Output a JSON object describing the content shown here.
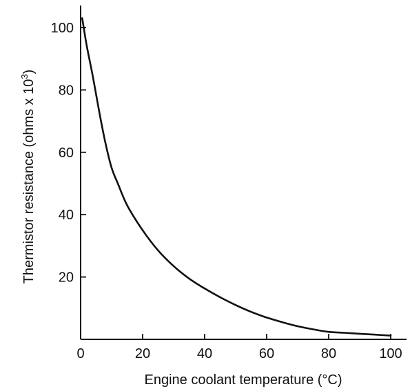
{
  "chart_data": {
    "type": "line",
    "xlabel": "Engine coolant temperature (°C)",
    "ylabel": "Thermistor resistance (ohms x 10",
    "ylabel_sup": "3",
    "ylabel_close": ")",
    "xlim": [
      0,
      105
    ],
    "ylim": [
      0,
      105
    ],
    "x_ticks": [
      0,
      20,
      40,
      60,
      80,
      100
    ],
    "y_ticks": [
      20,
      40,
      60,
      80,
      100
    ],
    "grid": false,
    "series": [
      {
        "x": [
          0.5,
          1,
          2,
          4,
          6,
          8,
          10,
          12,
          15,
          20,
          25,
          30,
          35,
          40,
          45,
          50,
          55,
          60,
          65,
          70,
          75,
          80,
          85,
          90,
          95,
          100
        ],
        "y": [
          103,
          100,
          94,
          84,
          73,
          63,
          55,
          50,
          43,
          35,
          28.5,
          23.5,
          19.5,
          16.3,
          13.5,
          11,
          8.8,
          7,
          5.5,
          4.2,
          3.2,
          2.4,
          2.1,
          1.8,
          1.5,
          1.2
        ]
      }
    ]
  }
}
